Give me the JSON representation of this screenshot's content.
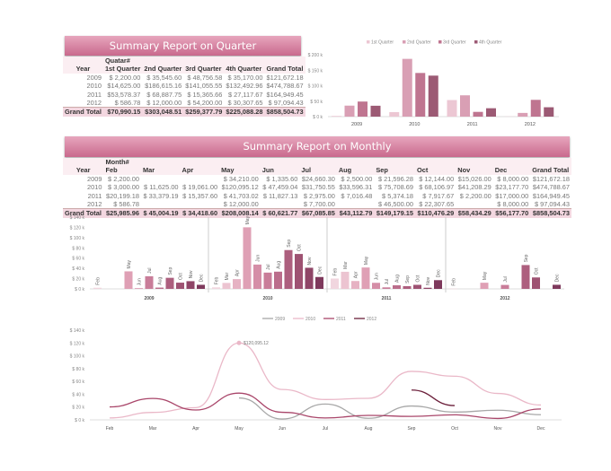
{
  "quarter": {
    "title": "Summary Report on Quarter",
    "field": "Quatar#",
    "year_label": "Year",
    "columns": [
      "1st Quarter",
      "2nd Quarter",
      "3rd Quarter",
      "4th Quarter",
      "Grand Total"
    ],
    "rows": [
      {
        "year": "2009",
        "cells": [
          "$  2,200.00",
          "$  35,545.60",
          "$  48,756.58",
          "$  35,170.00",
          "$121,672.18"
        ]
      },
      {
        "year": "2010",
        "cells": [
          "$14,625.00",
          "$186,615.16",
          "$141,055.55",
          "$132,492.96",
          "$474,788.67"
        ]
      },
      {
        "year": "2011",
        "cells": [
          "$53,578.37",
          "$  68,887.75",
          "$  15,365.66",
          "$  27,117.67",
          "$164,949.45"
        ]
      },
      {
        "year": "2012",
        "cells": [
          "$     586.78",
          "$  12,000.00",
          "$  54,200.00",
          "$  30,307.65",
          "$  97,094.43"
        ]
      }
    ],
    "total_label": "Grand Total",
    "totals": [
      "$70,990.15",
      "$303,048.51",
      "$259,377.79",
      "$225,088.28",
      "$858,504.73"
    ]
  },
  "monthly": {
    "title": "Summary Report on Monthly",
    "field": "Month#",
    "year_label": "Year",
    "columns": [
      "Feb",
      "Mar",
      "Apr",
      "May",
      "Jun",
      "Jul",
      "Aug",
      "Sep",
      "Oct",
      "Nov",
      "Dec",
      "Grand Total"
    ],
    "rows": [
      {
        "year": "2009",
        "cells": [
          "$  2,200.00",
          "",
          "",
          "$  34,210.00",
          "$    1,335.60",
          "$24,660.30",
          "$  2,500.00",
          "$  21,596.28",
          "$  12,144.00",
          "$15,026.00",
          "$  8,000.00",
          "$121,672.18"
        ]
      },
      {
        "year": "2010",
        "cells": [
          "$  3,000.00",
          "$  11,625.00",
          "$  19,061.00",
          "$120,095.12",
          "$  47,459.04",
          "$31,750.55",
          "$33,596.31",
          "$  75,708.69",
          "$  68,106.97",
          "$41,208.29",
          "$23,177.70",
          "$474,788.67"
        ]
      },
      {
        "year": "2011",
        "cells": [
          "$20,199.18",
          "$  33,379.19",
          "$  15,357.60",
          "$  41,703.02",
          "$  11,827.13",
          "$  2,975.00",
          "$  7,016.48",
          "$    5,374.18",
          "$    7,917.67",
          "$  2,200.00",
          "$17,000.00",
          "$164,949.45"
        ]
      },
      {
        "year": "2012",
        "cells": [
          "$     586.78",
          "",
          "",
          "$  12,000.00",
          "",
          "$  7,700.00",
          "",
          "$  46,500.00",
          "$  22,307.65",
          "",
          "$  8,000.00",
          "$  97,094.43"
        ]
      }
    ],
    "total_label": "Grand Total",
    "totals": [
      "$25,985.96",
      "$  45,004.19",
      "$  34,418.60",
      "$208,008.14",
      "$  60,621.77",
      "$67,085.85",
      "$43,112.79",
      "$149,179.15",
      "$110,476.29",
      "$58,434.29",
      "$56,177.70",
      "$858,504.73"
    ]
  },
  "chart_data": [
    {
      "type": "bar",
      "title": "",
      "categories": [
        "2009",
        "2010",
        "2011",
        "2012"
      ],
      "ylim": [
        0,
        200000
      ],
      "yticks": [
        "$ 0 k",
        "$ 50 k",
        "$ 100 k",
        "$ 150 k",
        "$ 200 k"
      ],
      "legend": "top",
      "series": [
        {
          "name": "1st Quarter",
          "color": "#ecc7d3",
          "values": [
            2200,
            14625,
            53578.37,
            586.78
          ]
        },
        {
          "name": "2nd Quarter",
          "color": "#d99fb4",
          "values": [
            35545.6,
            186615.16,
            68887.75,
            12000
          ]
        },
        {
          "name": "3rd Quarter",
          "color": "#bf7590",
          "values": [
            48756.58,
            141055.55,
            15365.66,
            54200
          ]
        },
        {
          "name": "4th Quarter",
          "color": "#9c5a74",
          "values": [
            35170,
            132492.96,
            27117.67,
            30307.65
          ]
        }
      ]
    },
    {
      "type": "bar",
      "title": "",
      "groups": [
        "2009",
        "2010",
        "2011",
        "2012"
      ],
      "categories": [
        "Feb",
        "Mar",
        "Apr",
        "May",
        "Jun",
        "Jul",
        "Aug",
        "Sep",
        "Oct",
        "Nov",
        "Dec"
      ],
      "ylim": [
        0,
        140000
      ],
      "yticks": [
        "$ 0 k",
        "$ 20 k",
        "$ 40 k",
        "$ 60 k",
        "$ 80 k",
        "$ 100 k",
        "$ 120 k",
        "$ 140 k"
      ],
      "values": [
        [
          2200,
          null,
          null,
          34210,
          1335.6,
          24660.3,
          2500,
          21596.28,
          12144,
          15026,
          8000
        ],
        [
          3000,
          11625,
          19061,
          120095.12,
          47459.04,
          31750.55,
          33596.31,
          75708.69,
          68106.97,
          41208.29,
          23177.7
        ],
        [
          20199.18,
          33379.19,
          15357.6,
          41703.02,
          11827.13,
          2975,
          7016.48,
          5374.18,
          7917.67,
          2200,
          17000
        ],
        [
          586.78,
          null,
          null,
          12000,
          null,
          7700,
          null,
          46500,
          22307.65,
          null,
          8000
        ]
      ]
    },
    {
      "type": "line",
      "categories": [
        "Feb",
        "Mar",
        "Apr",
        "May",
        "Jun",
        "Jul",
        "Aug",
        "Sep",
        "Oct",
        "Nov",
        "Dec"
      ],
      "ylim": [
        0,
        140000
      ],
      "yticks": [
        "$ 0 k",
        "$ 20 k",
        "$ 40 k",
        "$ 60 k",
        "$ 80 k",
        "$ 100 k",
        "$ 120 k",
        "$ 140 k"
      ],
      "legend": "top-right",
      "annotation": "$120,095.12",
      "series": [
        {
          "name": "2009",
          "color": "#a8a8a8",
          "values": [
            2200,
            null,
            null,
            34210,
            1335.6,
            24660.3,
            2500,
            21596.28,
            12144,
            15026,
            8000
          ]
        },
        {
          "name": "2010",
          "color": "#eab8c8",
          "values": [
            3000,
            11625,
            19061,
            120095.12,
            47459.04,
            31750.55,
            33596.31,
            75708.69,
            68106.97,
            41208.29,
            23177.7
          ]
        },
        {
          "name": "2011",
          "color": "#a9466a",
          "values": [
            20199.18,
            33379.19,
            15357.6,
            41703.02,
            11827.13,
            2975,
            7016.48,
            5374.18,
            7917.67,
            2200,
            17000
          ]
        },
        {
          "name": "2012",
          "color": "#6b1f3a",
          "values": [
            586.78,
            null,
            null,
            12000,
            null,
            7700,
            null,
            46500,
            22307.65,
            null,
            8000
          ]
        }
      ]
    }
  ]
}
